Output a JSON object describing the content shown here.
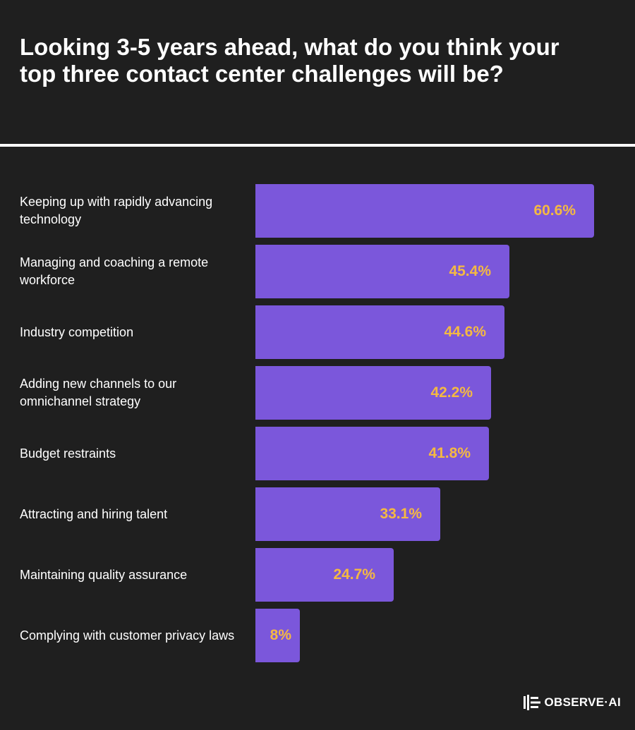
{
  "colors": {
    "background": "#1f1f1f",
    "bar": "#7b57db",
    "value_text": "#f5b942",
    "text": "#ffffff"
  },
  "chart_data": {
    "type": "bar",
    "orientation": "horizontal",
    "title": "Looking 3-5 years ahead, what do you think your top three contact center challenges will be?",
    "categories": [
      "Keeping up with rapidly advancing technology",
      "Managing and coaching a remote workforce",
      "Industry competition",
      "Adding new channels to our omnichannel strategy",
      "Budget restraints",
      "Attracting and hiring talent",
      "Maintaining quality assurance",
      "Complying with customer privacy laws"
    ],
    "values": [
      60.6,
      45.4,
      44.6,
      42.2,
      41.8,
      33.1,
      24.7,
      8
    ],
    "value_labels": [
      "60.6%",
      "45.4%",
      "44.6%",
      "42.2%",
      "41.8%",
      "33.1%",
      "24.7%",
      "8%"
    ],
    "xlim": [
      0,
      60.6
    ],
    "grid": false,
    "legend": "none"
  },
  "brand": {
    "logo_text": "OBSERVE·AI",
    "logo_icon": "observe-ai-mark-icon"
  }
}
